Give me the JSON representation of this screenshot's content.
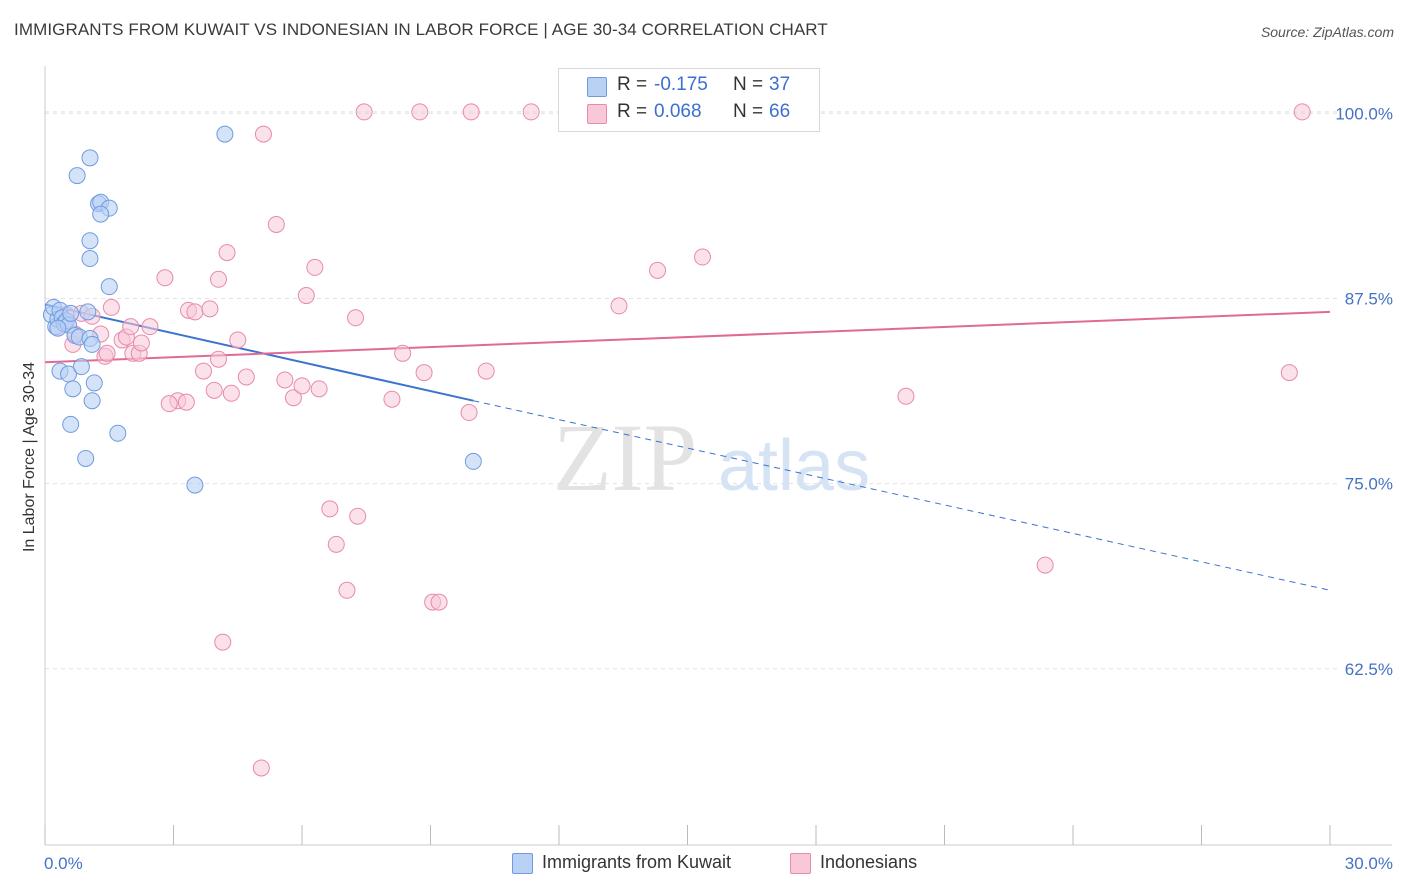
{
  "title": "IMMIGRANTS FROM KUWAIT VS INDONESIAN IN LABOR FORCE | AGE 30-34 CORRELATION CHART",
  "source": "Source: ZipAtlas.com",
  "watermark": {
    "zip": "ZIP",
    "atlas": "atlas"
  },
  "legend": {
    "r_label": "R =",
    "n_label": "N =",
    "series": [
      {
        "r": "-0.175",
        "n": "37"
      },
      {
        "r": "0.068",
        "n": "66"
      }
    ]
  },
  "colors": {
    "kuwait_fill": "#b9d1f5",
    "kuwait_stroke": "#6f9be0",
    "kuwait_line": "#3a74d0",
    "indonesian_fill": "#f8c8d8",
    "indonesian_stroke": "#e88aaa",
    "indonesian_line": "#e06a95",
    "tick_label": "#4472c4"
  },
  "chart_data": {
    "type": "scatter",
    "title": "IMMIGRANTS FROM KUWAIT VS INDONESIAN IN LABOR FORCE | AGE 30-34 CORRELATION CHART",
    "xlabel": "",
    "ylabel": "In Labor Force | Age 30-34",
    "xlim": [
      0,
      30
    ],
    "ylim": [
      50.6,
      103.2
    ],
    "x_tick_labels": [
      "0.0%",
      "30.0%"
    ],
    "y_tick_labels": [
      "100.0%",
      "87.5%",
      "75.0%",
      "62.5%"
    ],
    "y_ticks": [
      100,
      87.5,
      75,
      62.5
    ],
    "grid": true,
    "legend_position": "top-center",
    "series": [
      {
        "name": "Immigrants from Kuwait",
        "r": -0.175,
        "n": 37,
        "trend": {
          "x": [
            0.0,
            10.0
          ],
          "y": [
            87.1,
            80.6
          ],
          "dashed_to": [
            30.0,
            67.8
          ]
        },
        "points": [
          [
            0.15,
            86.4
          ],
          [
            0.2,
            86.9
          ],
          [
            0.25,
            85.6
          ],
          [
            0.3,
            86.1
          ],
          [
            0.35,
            86.7
          ],
          [
            0.4,
            86.2
          ],
          [
            0.45,
            85.8
          ],
          [
            0.5,
            86.0
          ],
          [
            0.55,
            85.7
          ],
          [
            0.3,
            85.5
          ],
          [
            0.6,
            86.5
          ],
          [
            0.7,
            85.0
          ],
          [
            0.8,
            84.9
          ],
          [
            1.0,
            86.6
          ],
          [
            1.05,
            84.8
          ],
          [
            0.35,
            82.6
          ],
          [
            0.55,
            82.4
          ],
          [
            0.65,
            81.4
          ],
          [
            0.85,
            82.9
          ],
          [
            1.15,
            81.8
          ],
          [
            1.1,
            80.6
          ],
          [
            0.6,
            79.0
          ],
          [
            1.7,
            78.4
          ],
          [
            0.95,
            76.7
          ],
          [
            3.5,
            74.9
          ],
          [
            10.0,
            76.5
          ],
          [
            0.75,
            95.8
          ],
          [
            1.05,
            97.0
          ],
          [
            1.25,
            93.9
          ],
          [
            1.3,
            94.0
          ],
          [
            1.5,
            93.6
          ],
          [
            1.05,
            91.4
          ],
          [
            1.05,
            90.2
          ],
          [
            1.5,
            88.3
          ],
          [
            4.2,
            98.6
          ],
          [
            1.1,
            84.4
          ],
          [
            1.3,
            93.2
          ]
        ]
      },
      {
        "name": "Indonesians",
        "r": 0.068,
        "n": 66,
        "trend": {
          "x": [
            0.0,
            30.0
          ],
          "y": [
            83.2,
            86.6
          ]
        },
        "points": [
          [
            0.3,
            85.5
          ],
          [
            0.5,
            86.4
          ],
          [
            0.65,
            84.4
          ],
          [
            0.7,
            85.1
          ],
          [
            0.85,
            86.5
          ],
          [
            1.1,
            86.3
          ],
          [
            1.3,
            85.1
          ],
          [
            1.4,
            83.6
          ],
          [
            1.55,
            86.9
          ],
          [
            1.8,
            84.7
          ],
          [
            1.9,
            84.9
          ],
          [
            2.0,
            85.6
          ],
          [
            2.05,
            83.8
          ],
          [
            2.2,
            83.8
          ],
          [
            2.25,
            84.5
          ],
          [
            2.8,
            88.9
          ],
          [
            3.1,
            80.6
          ],
          [
            3.35,
            86.7
          ],
          [
            3.5,
            86.6
          ],
          [
            3.7,
            82.6
          ],
          [
            3.85,
            86.8
          ],
          [
            3.95,
            81.3
          ],
          [
            4.05,
            88.8
          ],
          [
            4.25,
            90.6
          ],
          [
            4.5,
            84.7
          ],
          [
            4.7,
            82.2
          ],
          [
            4.35,
            81.1
          ],
          [
            4.05,
            83.4
          ],
          [
            5.1,
            98.6
          ],
          [
            5.4,
            92.5
          ],
          [
            5.6,
            82.0
          ],
          [
            5.8,
            80.8
          ],
          [
            6.0,
            81.6
          ],
          [
            6.1,
            87.7
          ],
          [
            6.3,
            89.6
          ],
          [
            7.25,
            86.2
          ],
          [
            8.1,
            80.7
          ],
          [
            8.35,
            83.8
          ],
          [
            8.85,
            82.5
          ],
          [
            10.3,
            82.6
          ],
          [
            9.9,
            79.8
          ],
          [
            7.45,
            100.1
          ],
          [
            8.75,
            100.1
          ],
          [
            9.95,
            100.1
          ],
          [
            11.35,
            100.1
          ],
          [
            13.4,
            87.0
          ],
          [
            14.3,
            89.4
          ],
          [
            15.35,
            90.3
          ],
          [
            17.15,
            100.1
          ],
          [
            20.1,
            80.9
          ],
          [
            23.35,
            69.5
          ],
          [
            29.05,
            82.5
          ],
          [
            29.35,
            100.1
          ],
          [
            6.65,
            73.3
          ],
          [
            7.3,
            72.8
          ],
          [
            6.8,
            70.9
          ],
          [
            7.05,
            67.8
          ],
          [
            9.05,
            67.0
          ],
          [
            9.2,
            67.0
          ],
          [
            4.15,
            64.3
          ],
          [
            5.05,
            55.8
          ],
          [
            2.9,
            80.4
          ],
          [
            3.3,
            80.5
          ],
          [
            1.45,
            83.8
          ],
          [
            2.45,
            85.6
          ],
          [
            6.4,
            81.4
          ]
        ]
      }
    ]
  }
}
